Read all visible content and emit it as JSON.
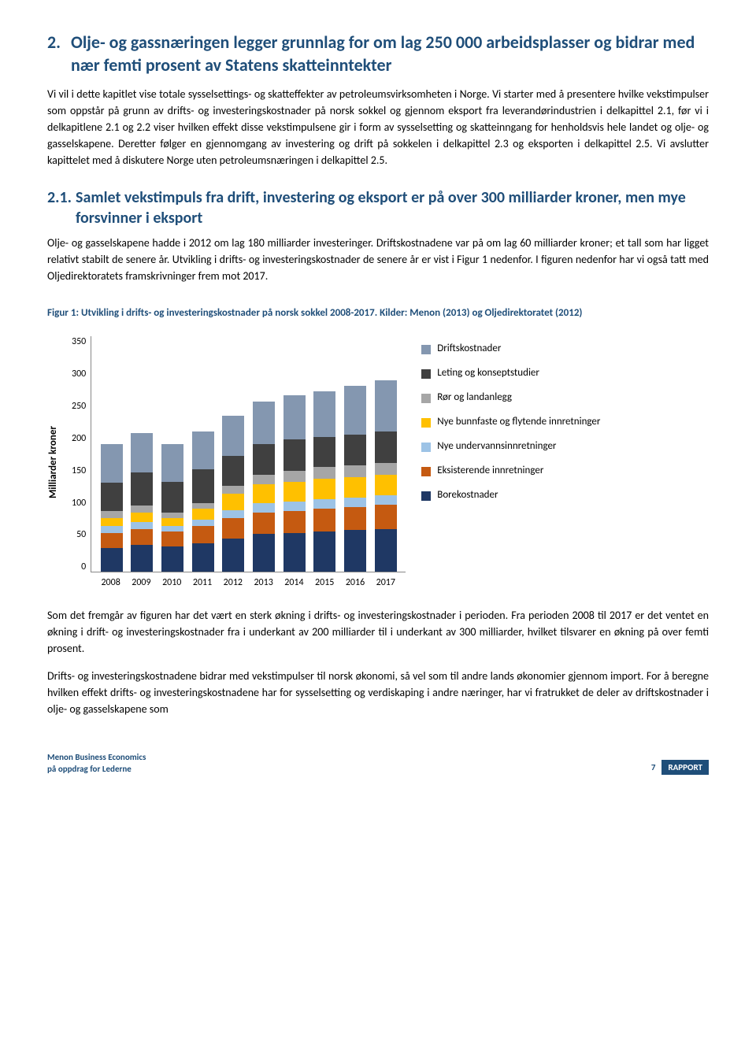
{
  "h2": {
    "num": "2.",
    "text": "Olje- og gassnæringen legger grunnlag for om lag 250 000 arbeidsplasser og bidrar med nær femti prosent av Statens skatteinntekter"
  },
  "p1": "Vi vil i dette kapitlet vise totale sysselsettings- og skatteffekter av petroleumsvirksomheten i Norge. Vi starter med å presentere hvilke vekstimpulser som oppstår på grunn av drifts- og investeringskostnader på norsk sokkel og gjennom eksport fra leverandørindustrien i delkapittel 2.1, før vi i delkapitlene 2.1 og 2.2 viser hvilken effekt disse vekstimpulsene gir i form av sysselsetting og skatteinngang for henholdsvis hele landet og olje- og gasselskapene. Deretter følger en gjennomgang av investering og drift på sokkelen i delkapittel 2.3 og eksporten i delkapittel 2.5. Vi avslutter kapittelet med å diskutere Norge uten petroleumsnæringen i delkapittel 2.5.",
  "h3": {
    "num": "2.1.",
    "text": "Samlet vekstimpuls fra drift, investering og eksport er på over 300 milliarder kroner, men mye forsvinner i eksport"
  },
  "p2": "Olje- og gasselskapene hadde i 2012 om lag 180 milliarder investeringer. Driftskostnadene var på om lag 60 milliarder kroner; et tall som har ligget relativt stabilt de senere år. Utvikling i drifts- og investeringskostnader de senere år er vist i Figur 1 nedenfor. I figuren nedenfor har vi også tatt med Oljedirektoratets framskrivninger frem mot 2017.",
  "figcap": "Figur 1: Utvikling i drifts- og investeringskostnader på norsk sokkel 2008-2017. Kilder: Menon (2013) og Oljedirektoratet (2012)",
  "chart": {
    "ylabel": "Milliarder kroner",
    "ymax": 350,
    "yticks": [
      "0",
      "50",
      "100",
      "150",
      "200",
      "250",
      "300",
      "350"
    ],
    "categories": [
      "2008",
      "2009",
      "2010",
      "2011",
      "2012",
      "2013",
      "2014",
      "2015",
      "2016",
      "2017"
    ],
    "series": [
      {
        "key": "bore",
        "label": "Borekostnader",
        "color": "#1f3864"
      },
      {
        "key": "eksi",
        "label": "Eksisterende innretninger",
        "color": "#c55a11"
      },
      {
        "key": "under",
        "label": "Nye undervannsinnretninger",
        "color": "#9dc3e6"
      },
      {
        "key": "bunn",
        "label": "Nye bunnfaste og flytende innretninger",
        "color": "#ffc000"
      },
      {
        "key": "ror",
        "label": "Rør og landanlegg",
        "color": "#a6a6a6"
      },
      {
        "key": "let",
        "label": "Leting og konseptstudier",
        "color": "#404040"
      },
      {
        "key": "drift",
        "label": "Driftskostnader",
        "color": "#8497b0"
      }
    ],
    "data": [
      {
        "bore": 36,
        "eksi": 22,
        "under": 10,
        "bunn": 12,
        "ror": 10,
        "let": 42,
        "drift": 58
      },
      {
        "bore": 40,
        "eksi": 24,
        "under": 10,
        "bunn": 14,
        "ror": 10,
        "let": 50,
        "drift": 58
      },
      {
        "bore": 38,
        "eksi": 22,
        "under": 8,
        "bunn": 12,
        "ror": 8,
        "let": 46,
        "drift": 56
      },
      {
        "bore": 42,
        "eksi": 26,
        "under": 10,
        "bunn": 16,
        "ror": 8,
        "let": 50,
        "drift": 56
      },
      {
        "bore": 50,
        "eksi": 30,
        "under": 12,
        "bunn": 24,
        "ror": 12,
        "let": 44,
        "drift": 60
      },
      {
        "bore": 56,
        "eksi": 32,
        "under": 14,
        "bunn": 28,
        "ror": 14,
        "let": 46,
        "drift": 62
      },
      {
        "bore": 58,
        "eksi": 32,
        "under": 14,
        "bunn": 30,
        "ror": 16,
        "let": 46,
        "drift": 66
      },
      {
        "bore": 60,
        "eksi": 34,
        "under": 14,
        "bunn": 30,
        "ror": 18,
        "let": 44,
        "drift": 68
      },
      {
        "bore": 62,
        "eksi": 34,
        "under": 14,
        "bunn": 30,
        "ror": 18,
        "let": 46,
        "drift": 72
      },
      {
        "bore": 64,
        "eksi": 36,
        "under": 14,
        "bunn": 30,
        "ror": 18,
        "let": 46,
        "drift": 76
      }
    ]
  },
  "p3": "Som det fremgår av figuren har det vært en sterk økning i drifts- og investeringskostnader i perioden. Fra perioden 2008 til 2017 er det ventet en økning i drift- og investeringskostnader fra i underkant av 200 milliarder til i underkant av 300 milliarder, hvilket tilsvarer en økning på over femti prosent.",
  "p4": "Drifts- og investeringskostnadene bidrar med vekstimpulser til norsk økonomi, så vel som til andre lands økonomier gjennom import. For å beregne hvilken effekt drifts- og investeringskostnadene har for sysselsetting og verdiskaping i andre næringer, har vi fratrukket de deler av driftskostnader i olje- og gasselskapene som",
  "footer": {
    "line1": "Menon Business Economics",
    "line2": "på oppdrag for Lederne",
    "page": "7",
    "badge": "RAPPORT"
  }
}
